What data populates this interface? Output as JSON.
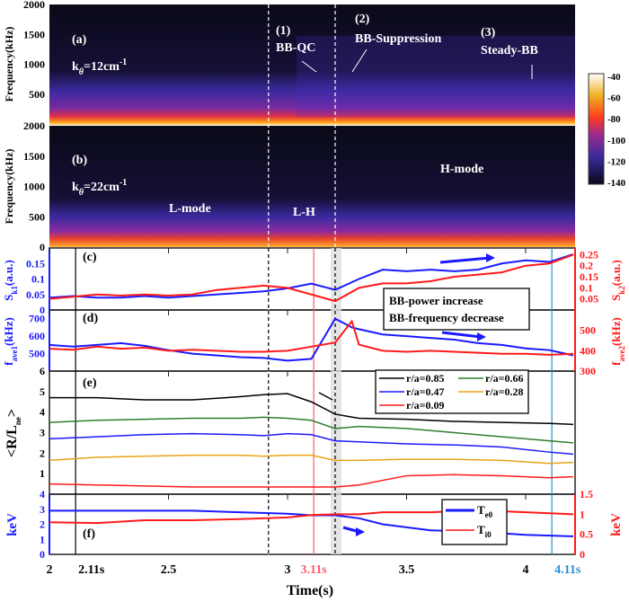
{
  "chart_data": [
    {
      "panel": "a",
      "type": "heatmap",
      "label": "(a)",
      "k_label": {
        "base": "k",
        "sub": "θ",
        "eq": "=12cm",
        "sup": "-1"
      },
      "ylabel": "Frequency(kHz)",
      "yticks": [
        "2000",
        "1500",
        "1000",
        "500"
      ],
      "ylim": [
        0,
        2000
      ],
      "annotations": [
        {
          "num": "(1)",
          "text": "BB-QC"
        },
        {
          "num": "(2)",
          "text": "BB-Suppression"
        },
        {
          "num": "(3)",
          "text": "Steady-BB"
        }
      ]
    },
    {
      "panel": "b",
      "type": "heatmap",
      "label": "(b)",
      "k_label": {
        "base": "k",
        "sub": "θ",
        "eq": "=22cm",
        "sup": "-1"
      },
      "ylabel": "Frequency(kHz)",
      "yticks": [
        "2000",
        "1500",
        "1000",
        "500",
        "0"
      ],
      "ylim": [
        0,
        2000
      ],
      "annotations": [
        "L-mode",
        "L-H",
        "H-mode"
      ]
    },
    {
      "panel": "colorbar",
      "ticks": [
        "-40",
        "-60",
        "-80",
        "-100",
        "-120",
        "-140"
      ],
      "range": [
        -140,
        -40
      ]
    },
    {
      "panel": "c",
      "type": "line",
      "label": "(c)",
      "ylabel_left": {
        "base": "S",
        "sub": "k1",
        "unit": "(a.u.)"
      },
      "ylabel_right": {
        "base": "S",
        "sub": "k2",
        "unit": "(a.u.)"
      },
      "yticks_left": [
        "0.15",
        "0.1",
        "0.05",
        "0"
      ],
      "yticks_right": [
        "0.25",
        "0.2",
        "0.15",
        "0.1",
        "0.05"
      ],
      "ylim_left": [
        0,
        0.2
      ],
      "ylim_right": [
        0,
        0.28
      ],
      "t": [
        2.0,
        2.1,
        2.2,
        2.3,
        2.4,
        2.5,
        2.6,
        2.7,
        2.8,
        2.9,
        3.0,
        3.1,
        3.2,
        3.3,
        3.4,
        3.5,
        3.6,
        3.7,
        3.8,
        3.9,
        4.0,
        4.1,
        4.2
      ],
      "series": [
        {
          "name": "S_k1",
          "axis": "left",
          "color": "#1a1aff",
          "values": [
            0.04,
            0.045,
            0.04,
            0.04,
            0.045,
            0.04,
            0.045,
            0.05,
            0.055,
            0.06,
            0.07,
            0.085,
            0.065,
            0.1,
            0.13,
            0.125,
            0.13,
            0.125,
            0.13,
            0.15,
            0.16,
            0.155,
            0.18
          ]
        },
        {
          "name": "S_k2",
          "axis": "right",
          "color": "#ff1a1a",
          "values": [
            0.05,
            0.06,
            0.07,
            0.065,
            0.07,
            0.065,
            0.07,
            0.09,
            0.1,
            0.11,
            0.1,
            0.07,
            0.04,
            0.1,
            0.12,
            0.12,
            0.13,
            0.15,
            0.16,
            0.17,
            0.2,
            0.21,
            0.25
          ]
        }
      ],
      "box": [
        "BB-power increase",
        "BB-frequency decrease"
      ]
    },
    {
      "panel": "d",
      "type": "line",
      "label": "(d)",
      "ylabel_left": {
        "base": "f",
        "sub": "ave1",
        "unit": "(kHz)"
      },
      "ylabel_right": {
        "base": "f",
        "sub": "ave2",
        "unit": "(kHz)"
      },
      "yticks_left": [
        "700",
        "600",
        "500"
      ],
      "yticks_right": [
        "500",
        "400",
        "300"
      ],
      "ylim_left": [
        400,
        750
      ],
      "ylim_right": [
        300,
        600
      ],
      "t": [
        2.0,
        2.1,
        2.2,
        2.3,
        2.4,
        2.5,
        2.6,
        2.7,
        2.8,
        2.9,
        3.0,
        3.1,
        3.2,
        3.27,
        3.3,
        3.4,
        3.5,
        3.6,
        3.7,
        3.8,
        3.9,
        4.0,
        4.1,
        4.2
      ],
      "series": [
        {
          "name": "f_ave1",
          "axis": "left",
          "color": "#1a1aff",
          "values": [
            550,
            540,
            550,
            560,
            545,
            520,
            500,
            490,
            480,
            475,
            460,
            470,
            700,
            650,
            640,
            610,
            600,
            590,
            580,
            560,
            550,
            530,
            520,
            490
          ]
        },
        {
          "name": "f_ave2",
          "axis": "right",
          "color": "#ff1a1a",
          "values": [
            410,
            405,
            420,
            410,
            415,
            400,
            405,
            400,
            395,
            395,
            400,
            420,
            440,
            545,
            430,
            400,
            395,
            400,
            395,
            390,
            385,
            385,
            380,
            385
          ]
        }
      ]
    },
    {
      "panel": "e",
      "type": "line",
      "label": "(e)",
      "ylabel": {
        "base": "<R/L",
        "sub": "ne",
        "end": ">"
      },
      "yticks": [
        "6",
        "5",
        "4",
        "3",
        "2",
        "1"
      ],
      "ylim": [
        0,
        6
      ],
      "t": [
        2.0,
        2.2,
        2.4,
        2.6,
        2.8,
        2.9,
        3.0,
        3.1,
        3.2,
        3.3,
        3.5,
        3.7,
        3.9,
        4.1,
        4.2
      ],
      "series": [
        {
          "name": "r/a=0.85",
          "color": "#000000",
          "values": [
            4.7,
            4.7,
            4.6,
            4.6,
            4.75,
            4.85,
            4.9,
            4.5,
            3.9,
            3.7,
            3.65,
            3.55,
            3.5,
            3.45,
            3.4
          ]
        },
        {
          "name": "r/a=0.66",
          "color": "#2e7d2e",
          "values": [
            3.5,
            3.6,
            3.65,
            3.7,
            3.7,
            3.75,
            3.7,
            3.6,
            3.2,
            3.3,
            3.2,
            3.0,
            2.8,
            2.6,
            2.5
          ]
        },
        {
          "name": "r/a=0.47",
          "color": "#1a1aff",
          "values": [
            2.7,
            2.8,
            2.9,
            2.95,
            2.9,
            2.85,
            2.95,
            2.9,
            2.6,
            2.55,
            2.45,
            2.4,
            2.3,
            2.05,
            1.95
          ]
        },
        {
          "name": "r/a=0.28",
          "color": "#e8a317",
          "values": [
            1.65,
            1.8,
            1.85,
            1.9,
            1.9,
            1.85,
            1.9,
            1.9,
            1.65,
            1.65,
            1.7,
            1.7,
            1.65,
            1.5,
            1.55
          ]
        },
        {
          "name": "r/a=0.09",
          "color": "#ff1a1a",
          "values": [
            0.5,
            0.45,
            0.4,
            0.35,
            0.35,
            0.35,
            0.35,
            0.35,
            0.35,
            0.45,
            0.9,
            0.95,
            0.9,
            0.8,
            0.85
          ]
        }
      ]
    },
    {
      "panel": "f",
      "type": "line",
      "label": "(f)",
      "ylabel_left": "keV",
      "ylabel_right": "keV",
      "yticks_left": [
        "4",
        "3",
        "2",
        "1",
        "0"
      ],
      "yticks_right": [
        "1.5",
        "1",
        "0.5",
        "0"
      ],
      "ylim_left": [
        0,
        4
      ],
      "ylim_right": [
        0,
        1.5
      ],
      "t": [
        2.0,
        2.2,
        2.4,
        2.6,
        2.8,
        3.0,
        3.1,
        3.2,
        3.3,
        3.4,
        3.6,
        3.8,
        4.0,
        4.2
      ],
      "series": [
        {
          "name": "T",
          "sub": "e0",
          "axis": "left",
          "color": "#1a1aff",
          "values": [
            2.9,
            2.9,
            2.9,
            2.9,
            2.8,
            2.7,
            2.6,
            2.6,
            2.4,
            2.0,
            1.6,
            1.5,
            1.3,
            1.2
          ]
        },
        {
          "name": "T",
          "sub": "i0",
          "axis": "right",
          "color": "#ff1a1a",
          "values": [
            0.8,
            0.78,
            0.85,
            0.85,
            0.88,
            0.92,
            0.98,
            1.0,
            1.0,
            1.05,
            1.05,
            1.1,
            1.05,
            1.0
          ]
        }
      ]
    }
  ],
  "xaxis": {
    "label": "Time(s)",
    "ticks": [
      "2",
      "2.5",
      "3",
      "3.5",
      "4"
    ],
    "xlim": [
      2,
      4.2
    ],
    "markers": [
      {
        "t": 2.11,
        "label": "2.11s",
        "color": "#000000"
      },
      {
        "t": 3.11,
        "label": "3.11s",
        "color": "#ff5a6a"
      },
      {
        "t": 4.11,
        "label": "4.11s",
        "color": "#2a90d0"
      }
    ],
    "dashed": [
      2.92,
      3.2
    ]
  }
}
